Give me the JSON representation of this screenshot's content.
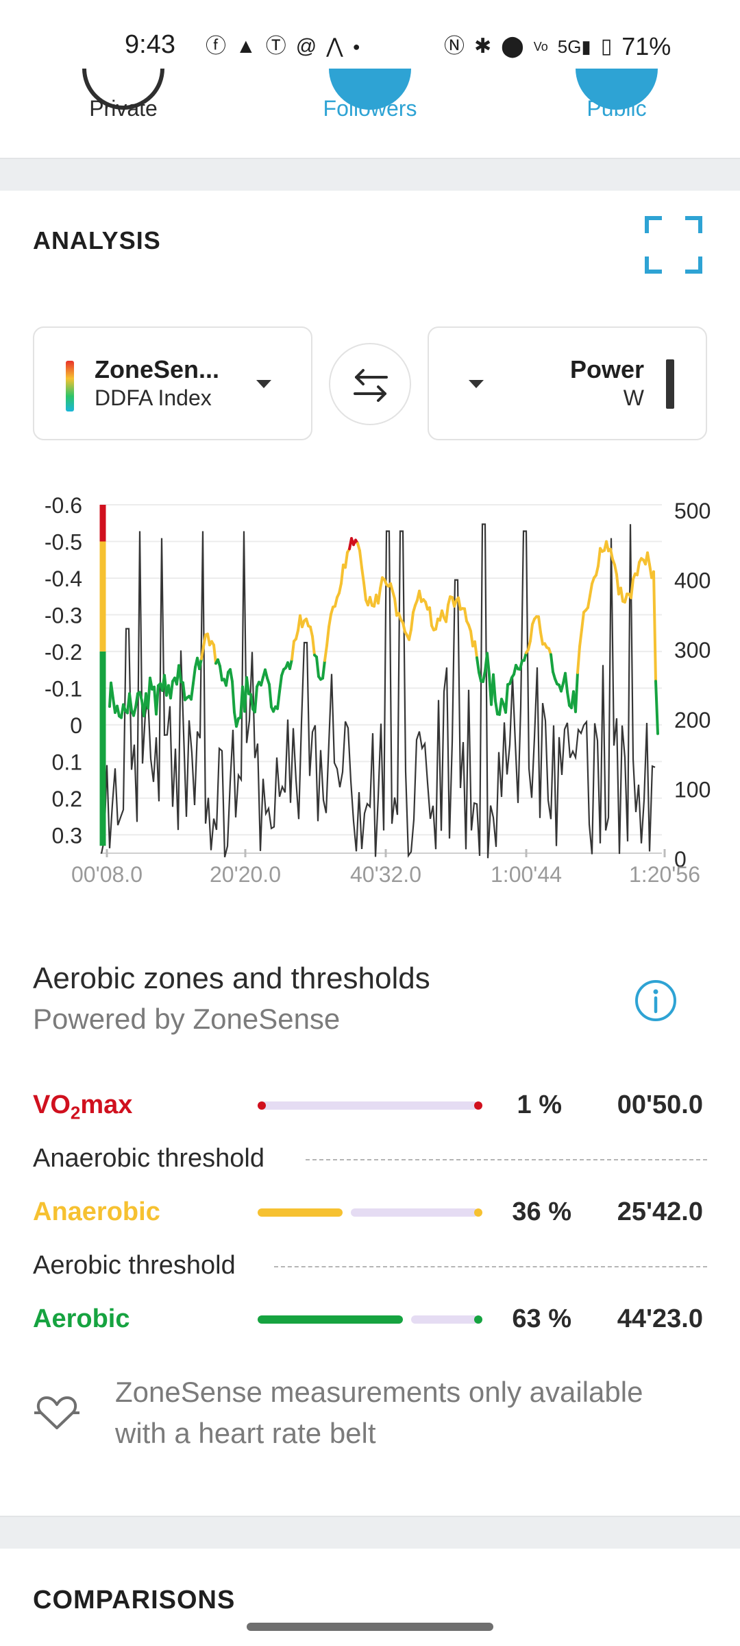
{
  "status_bar": {
    "time": "9:43",
    "battery": "71%",
    "icons": [
      "facebook-icon",
      "drive-icon",
      "tumblr-icon",
      "threads-icon",
      "strava-icon",
      "dot-icon",
      "nfc-icon",
      "bluetooth-icon",
      "location-icon",
      "volte-icon",
      "signal-5g-icon",
      "battery-icon"
    ]
  },
  "privacy": {
    "private_label": "Private",
    "followers_label": "Followers",
    "public_label": "Public",
    "accent": "#2ea3d4"
  },
  "analysis": {
    "title": "ANALYSIS",
    "left_selector": {
      "title": "ZoneSen...",
      "subtitle": "DDFA Index"
    },
    "right_selector": {
      "title": "Power",
      "subtitle": "W"
    }
  },
  "chart_data": {
    "type": "line",
    "x_ticks": [
      "00'08.0",
      "20'20.0",
      "40'32.0",
      "1:00'44",
      "1:20'56"
    ],
    "left_axis_ticks": [
      "-0.6",
      "-0.5",
      "-0.4",
      "-0.3",
      "-0.2",
      "-0.1",
      "0",
      "0.1",
      "0.2",
      "0.3"
    ],
    "right_axis_ticks": [
      "500",
      "400",
      "300",
      "200",
      "100",
      "0"
    ],
    "ylim_left": [
      0.35,
      -0.6
    ],
    "ylim_right": [
      0,
      500
    ],
    "series": [
      {
        "type": "line",
        "axis": "left",
        "colors_by_zone": {
          "aerobic": "#16a340",
          "anaerobic": "#f6c131",
          "vo2max": "#d0101e"
        }
      },
      {
        "type": "line",
        "axis": "right",
        "color": "#333333"
      }
    ],
    "zone_thresholds": [
      -0.2,
      -0.5
    ]
  },
  "zones": {
    "title": "Aerobic zones and thresholds",
    "subtitle": "Powered by ZoneSense",
    "rows": [
      {
        "label": "VO",
        "sub": "2",
        "label_suffix": "max",
        "percent": "1 %",
        "time": "00'50.0",
        "color": "#d0101e",
        "fraction": 0.01
      },
      {
        "label": "Anaerobic",
        "percent": "36 %",
        "time": "25'42.0",
        "color": "#f6c131",
        "fraction": 0.36
      },
      {
        "label": "Aerobic",
        "percent": "63 %",
        "time": "44'23.0",
        "color": "#16a340",
        "fraction": 0.63
      }
    ],
    "anaerobic_threshold_label": "Anaerobic threshold",
    "aerobic_threshold_label": "Aerobic threshold",
    "track_color": "#e5dcf3",
    "note": "ZoneSense measurements only available with a heart rate belt"
  },
  "comparisons": {
    "title": "COMPARISONS"
  }
}
